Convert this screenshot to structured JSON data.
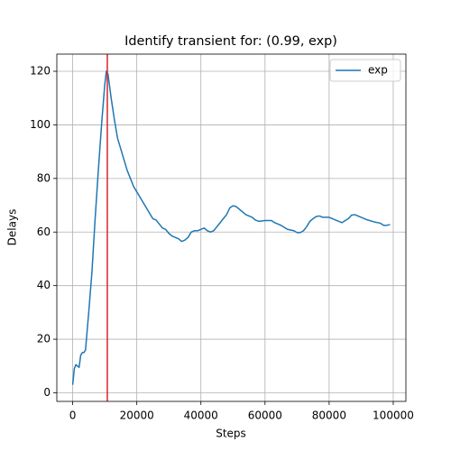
{
  "chart_data": {
    "type": "line",
    "title": "Identify transient for: (0.99, exp)",
    "x_label": "Steps",
    "y_label": "Delays",
    "x": [
      0,
      500,
      1000,
      1500,
      2000,
      2500,
      3000,
      3500,
      4000,
      5000,
      6000,
      7000,
      8000,
      9000,
      10000,
      10500,
      11000,
      12000,
      13000,
      14000,
      15000,
      16000,
      17000,
      18000,
      19000,
      20000,
      21000,
      22000,
      23000,
      24000,
      25000,
      26000,
      27000,
      28000,
      29000,
      30000,
      31000,
      32000,
      33000,
      34000,
      35000,
      36000,
      37000,
      38000,
      39000,
      40000,
      41000,
      42000,
      43000,
      44000,
      45000,
      46000,
      47000,
      48000,
      49000,
      50000,
      51000,
      52000,
      53000,
      54000,
      55000,
      56000,
      57000,
      58000,
      60000,
      62000,
      63000,
      65000,
      67000,
      69000,
      70000,
      71000,
      72000,
      73000,
      74000,
      75000,
      76000,
      77000,
      78000,
      80000,
      82000,
      84000,
      86000,
      87000,
      88000,
      90000,
      92000,
      94000,
      96000,
      97000,
      98000,
      99000
    ],
    "series": [
      {
        "name": "exp",
        "color": "#1f77b4",
        "values": [
          3,
          9,
          10.5,
          10,
          9.5,
          14,
          15,
          15,
          16,
          30,
          45,
          65,
          83,
          100,
          115,
          120,
          119,
          110,
          102,
          95,
          91,
          87,
          83,
          80,
          77,
          75,
          73,
          71,
          69,
          67,
          65,
          64.5,
          63,
          61.5,
          61,
          59.5,
          58.5,
          58,
          57.5,
          56.5,
          57,
          58,
          60,
          60.5,
          60.5,
          61,
          61.5,
          60.5,
          60,
          60.5,
          62,
          63.5,
          65,
          66.5,
          69,
          69.8,
          69.5,
          68.5,
          67.5,
          66.5,
          66,
          65.5,
          64.5,
          64,
          64.3,
          64.3,
          63.5,
          62.5,
          61,
          60.5,
          59.8,
          59.8,
          60.5,
          62,
          64,
          65,
          65.8,
          66,
          65.5,
          65.5,
          64.5,
          63.5,
          65,
          66.3,
          66.5,
          65.5,
          64.5,
          63.8,
          63.3,
          62.5,
          62.5,
          62.8
        ]
      }
    ],
    "vline": {
      "x": 10800,
      "color": "#d62728"
    },
    "xlim": [
      -4950,
      103950
    ],
    "ylim": [
      -3.2,
      126.4
    ],
    "xticks": [
      0,
      20000,
      40000,
      60000,
      80000,
      100000
    ],
    "yticks": [
      0,
      20,
      40,
      60,
      80,
      100,
      120
    ],
    "grid": true,
    "legend": "upper right"
  }
}
